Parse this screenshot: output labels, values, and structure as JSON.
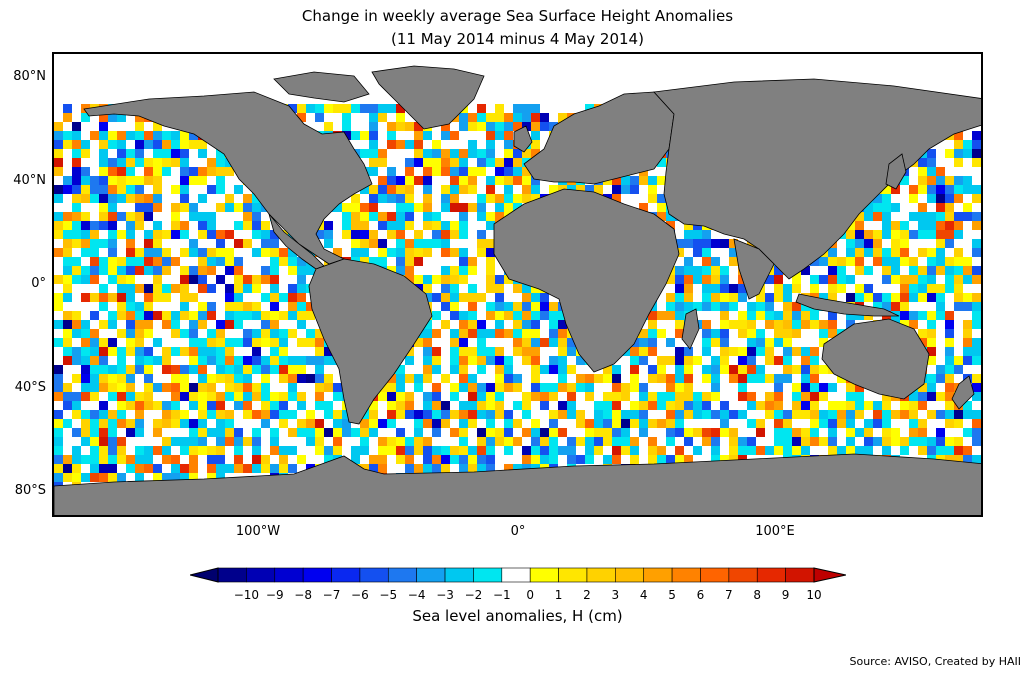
{
  "title_line1": "Change in weekly average Sea Surface Height Anomalies",
  "title_line2": "(11 May 2014 minus 4 May 2014)",
  "lat_labels": [
    "80°N",
    "40°N",
    "0°",
    "40°S",
    "80°S"
  ],
  "lon_labels": [
    "100°W",
    "0°",
    "100°E"
  ],
  "colorbar": {
    "ticks": [
      "−10",
      "−9",
      "−8",
      "−7",
      "−6",
      "−5",
      "−4",
      "−3",
      "−2",
      "−1",
      "0",
      "1",
      "2",
      "3",
      "4",
      "5",
      "6",
      "7",
      "8",
      "9",
      "10"
    ],
    "colors": [
      "#00006e",
      "#00008c",
      "#0000b4",
      "#0000d2",
      "#0000f0",
      "#0a28f0",
      "#1450f0",
      "#1e78f0",
      "#14a0f0",
      "#00c8f0",
      "#00e6f0",
      "#ffffff",
      "#ffff00",
      "#ffe600",
      "#ffd200",
      "#ffbe00",
      "#ffa000",
      "#ff8200",
      "#ff6400",
      "#f04600",
      "#e62800",
      "#d21400",
      "#be0000"
    ],
    "label": "Sea level anomalies, H (cm)"
  },
  "source": "Source: AVISO, Created by HAII",
  "colors": {
    "land": "#808080",
    "ice_white": "#ffffff",
    "frame": "#000000"
  }
}
